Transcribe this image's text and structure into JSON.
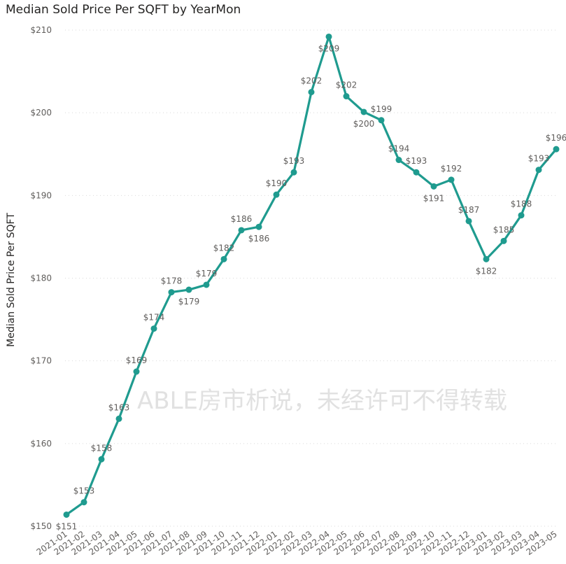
{
  "chart_data": {
    "type": "line",
    "title": "Median Sold Price Per SQFT by YearMon",
    "xlabel": "",
    "ylabel": "Median Sold Price Per SQFT",
    "ylim": [
      150,
      210
    ],
    "yticks": [
      150,
      160,
      170,
      180,
      190,
      200,
      210
    ],
    "ytick_labels": [
      "$150",
      "$160",
      "$170",
      "$180",
      "$190",
      "$200",
      "$210"
    ],
    "grid": true,
    "color": "#1f9b8f",
    "categories": [
      "2021-01",
      "2021-02",
      "2021-03",
      "2021-04",
      "2021-05",
      "2021-06",
      "2021-07",
      "2021-08",
      "2021-09",
      "2021-10",
      "2021-11",
      "2021-12",
      "2022-01",
      "2022-02",
      "2022-03",
      "2022-04",
      "2022-05",
      "2022-06",
      "2022-07",
      "2022-08",
      "2022-09",
      "2022-10",
      "2022-11",
      "2022-12",
      "2023-01",
      "2023-02",
      "2023-03",
      "2023-04",
      "2023-05"
    ],
    "values": [
      151.4,
      152.9,
      158.1,
      163.0,
      168.7,
      173.9,
      178.3,
      178.6,
      179.2,
      182.3,
      185.8,
      186.2,
      190.1,
      192.8,
      202.5,
      209.2,
      202.0,
      200.1,
      199.1,
      194.3,
      192.8,
      191.1,
      191.9,
      186.9,
      182.3,
      184.5,
      187.6,
      193.1,
      195.6
    ],
    "data_labels": [
      "$151",
      "$153",
      "$158",
      "$163",
      "$169",
      "$174",
      "$178",
      "$179",
      "$179",
      "$182",
      "$186",
      "$186",
      "$190",
      "$193",
      "$202",
      "$209",
      "$202",
      "$200",
      "$199",
      "$194",
      "$193",
      "$191",
      "$192",
      "$187",
      "$182",
      "$185",
      "$188",
      "$193",
      "$196"
    ],
    "label_position": [
      "below",
      "above",
      "above",
      "above",
      "above",
      "above",
      "above",
      "below",
      "above",
      "above",
      "above",
      "below",
      "above",
      "above",
      "above",
      "below",
      "above",
      "below",
      "above",
      "above",
      "above",
      "below",
      "above",
      "above",
      "below",
      "above",
      "above",
      "above",
      "above"
    ]
  },
  "watermark": "ABLE房市析说，未经许可不得转载"
}
